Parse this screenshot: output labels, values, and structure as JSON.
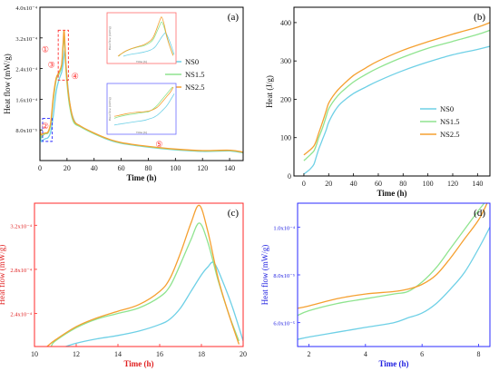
{
  "colors": {
    "NS0": "#6ed0e6",
    "NS1.5": "#8fe48f",
    "NS2.5": "#f5a030",
    "red_accent": "#ff3b30",
    "blue_accent": "#3a3aff"
  },
  "chart_data": [
    {
      "id": "a",
      "panel_label": "(a)",
      "type": "line",
      "title": "",
      "xlabel": "Time (h)",
      "ylabel": "Heat flow (mW/g)",
      "xlim": [
        0,
        150
      ],
      "ylim": [
        0,
        0.0004
      ],
      "x_ticks": [
        0,
        20,
        40,
        60,
        80,
        100,
        120,
        140
      ],
      "y_ticks": [
        8e-05,
        0.00016,
        0.00024,
        0.00032,
        0.0004
      ],
      "y_tick_labels": [
        "8.0x10⁻⁵",
        "1.6x10⁻⁴",
        "2.4x10⁻⁴",
        "3.2x10⁻⁴",
        "4.0x10⁻⁴"
      ],
      "legend": [
        "NS0",
        "NS1.5",
        "NS2.5"
      ],
      "legend_position": "right",
      "annotations": [
        "①",
        "②",
        "③",
        "④",
        "⑤"
      ],
      "series": [
        {
          "name": "NS0",
          "x": [
            0,
            1,
            2,
            4,
            6,
            8,
            10,
            12,
            14,
            16,
            17,
            18,
            18.6,
            19.5,
            21,
            23,
            26,
            30,
            40,
            50,
            60,
            80,
            100,
            120,
            140,
            150
          ],
          "values": [
            7e-05,
            5e-05,
            5.3e-05,
            5.7e-05,
            6e-05,
            7.5e-05,
            0.00012,
            0.00018,
            0.00021,
            0.00023,
            0.00025,
            0.00028,
            0.000286,
            0.00024,
            0.00018,
            0.00013,
            0.0001,
            8.8e-05,
            7e-05,
            5.5e-05,
            4.5e-05,
            3.5e-05,
            2.8e-05,
            2.4e-05,
            2.5e-05,
            2e-05
          ]
        },
        {
          "name": "NS1.5",
          "x": [
            0,
            1,
            2,
            4,
            6,
            8,
            10,
            12,
            14,
            16,
            17,
            17.9,
            19,
            20,
            22,
            25,
            30,
            40,
            50,
            60,
            80,
            100,
            120,
            140,
            150
          ],
          "values": [
            8e-05,
            6e-05,
            6.5e-05,
            7e-05,
            7.2e-05,
            9.5e-05,
            0.00016,
            0.00021,
            0.000225,
            0.000245,
            0.00029,
            0.000322,
            0.00025,
            0.0002,
            0.00014,
            0.0001,
            8.8e-05,
            7e-05,
            5.6e-05,
            4.6e-05,
            3.6e-05,
            2.9e-05,
            2.5e-05,
            2.6e-05,
            2.1e-05
          ]
        },
        {
          "name": "NS2.5",
          "x": [
            0,
            1,
            2,
            4,
            6,
            8,
            10,
            12,
            14,
            16,
            17,
            17.9,
            19,
            20,
            22,
            25,
            30,
            40,
            50,
            60,
            80,
            100,
            120,
            140,
            150
          ],
          "values": [
            8e-05,
            6.7e-05,
            7e-05,
            7.2e-05,
            7.5e-05,
            0.0001,
            0.00017,
            0.000215,
            0.00023,
            0.00025,
            0.0003,
            0.000338,
            0.00026,
            0.00021,
            0.00015,
            0.000105,
            9e-05,
            7.2e-05,
            5.7e-05,
            4.7e-05,
            3.7e-05,
            3e-05,
            2.6e-05,
            2.7e-05,
            2.2e-05
          ]
        }
      ],
      "insets": [
        {
          "border_color": "#ff6b6b",
          "xlabel": "Time (h)",
          "ylabel": "Heat flow (mW/g)"
        },
        {
          "border_color": "#6b6bff",
          "xlabel": "Time (h)",
          "ylabel": "Heat flow (mW/g)"
        }
      ]
    },
    {
      "id": "b",
      "panel_label": "(b)",
      "type": "line",
      "title": "",
      "xlabel": "Time (h)",
      "ylabel": "Heat (J/g)",
      "xlim": [
        -8,
        150
      ],
      "ylim": [
        0,
        440
      ],
      "x_ticks": [
        0,
        20,
        40,
        60,
        80,
        100,
        120,
        140
      ],
      "y_ticks": [
        0,
        100,
        200,
        300,
        400
      ],
      "legend": [
        "NS0",
        "NS1.5",
        "NS2.5"
      ],
      "legend_position": "center-right",
      "series": [
        {
          "name": "NS0",
          "x": [
            0,
            2,
            5,
            8,
            10,
            12,
            15,
            18,
            20,
            25,
            30,
            40,
            50,
            60,
            80,
            100,
            120,
            140,
            150
          ],
          "values": [
            5,
            10,
            18,
            30,
            50,
            70,
            95,
            120,
            140,
            170,
            190,
            215,
            232,
            248,
            275,
            297,
            316,
            330,
            338
          ]
        },
        {
          "name": "NS1.5",
          "x": [
            0,
            2,
            5,
            8,
            10,
            12,
            15,
            18,
            20,
            25,
            30,
            40,
            50,
            60,
            80,
            100,
            120,
            140,
            150
          ],
          "values": [
            40,
            46,
            55,
            65,
            80,
            100,
            125,
            155,
            175,
            200,
            218,
            245,
            265,
            282,
            310,
            333,
            351,
            369,
            380
          ]
        },
        {
          "name": "NS2.5",
          "x": [
            0,
            2,
            5,
            8,
            10,
            12,
            15,
            18,
            20,
            25,
            30,
            40,
            50,
            60,
            80,
            100,
            120,
            140,
            150
          ],
          "values": [
            55,
            60,
            68,
            78,
            92,
            112,
            140,
            170,
            190,
            215,
            233,
            262,
            282,
            300,
            328,
            350,
            370,
            388,
            400
          ]
        }
      ]
    },
    {
      "id": "c",
      "panel_label": "(c)",
      "type": "line",
      "title": "",
      "xlabel": "Time (h)",
      "ylabel": "Heat flow (mW/g)",
      "xlim": [
        10,
        20
      ],
      "ylim": [
        0.00021,
        0.00034
      ],
      "x_ticks": [
        10,
        12,
        14,
        16,
        18,
        20
      ],
      "y_ticks": [
        0.00024,
        0.00028,
        0.00032
      ],
      "y_tick_labels": [
        "2.4x10⁻⁴",
        "2.8x10⁻⁴",
        "3.2x10⁻⁴"
      ],
      "series": [
        {
          "name": "NS0",
          "x": [
            11.5,
            12,
            13,
            14,
            15,
            16,
            16.5,
            17,
            17.5,
            18,
            18.3,
            18.6,
            19,
            19.5,
            20
          ],
          "values": [
            0.00021,
            0.000213,
            0.000217,
            0.00022,
            0.000224,
            0.00023,
            0.000235,
            0.000245,
            0.00026,
            0.000275,
            0.000282,
            0.000286,
            0.00027,
            0.000245,
            0.000215
          ]
        },
        {
          "name": "NS1.5",
          "x": [
            10.8,
            11,
            12,
            13,
            14,
            15,
            16,
            16.5,
            17,
            17.5,
            17.9,
            18.3,
            18.8,
            19.3,
            19.8
          ],
          "values": [
            0.00021,
            0.000215,
            0.000227,
            0.000235,
            0.00024,
            0.000245,
            0.000255,
            0.000265,
            0.000285,
            0.000307,
            0.000322,
            0.000305,
            0.00027,
            0.00024,
            0.000215
          ]
        },
        {
          "name": "NS2.5",
          "x": [
            10.6,
            11,
            12,
            13,
            14,
            15,
            16,
            16.5,
            17,
            17.5,
            17.9,
            18.3,
            18.8,
            19.3,
            19.8
          ],
          "values": [
            0.00021,
            0.000216,
            0.000228,
            0.000236,
            0.000242,
            0.000248,
            0.00026,
            0.000272,
            0.000295,
            0.000322,
            0.000338,
            0.000315,
            0.000272,
            0.00024,
            0.000212
          ]
        }
      ]
    },
    {
      "id": "d",
      "panel_label": "(d)",
      "type": "line",
      "title": "",
      "xlabel": "Time (h)",
      "ylabel": "Heat flow (mW/g)",
      "xlim": [
        1.6,
        8.4
      ],
      "ylim": [
        5e-05,
        0.00011
      ],
      "x_ticks": [
        2,
        4,
        6,
        8
      ],
      "y_ticks": [
        6e-05,
        8e-05,
        0.0001
      ],
      "y_tick_labels": [
        "6.0x10⁻⁵",
        "8.0x10⁻⁵",
        "1.0x10⁻⁴"
      ],
      "series": [
        {
          "name": "NS0",
          "x": [
            1.6,
            2,
            3,
            4,
            5,
            5.5,
            6,
            6.5,
            7,
            7.5,
            8,
            8.4
          ],
          "values": [
            5.3e-05,
            5.4e-05,
            5.6e-05,
            5.8e-05,
            6e-05,
            6.2e-05,
            6.4e-05,
            6.8e-05,
            7.4e-05,
            8.1e-05,
            9.1e-05,
            0.0001
          ]
        },
        {
          "name": "NS1.5",
          "x": [
            1.6,
            2,
            3,
            4,
            5,
            5.5,
            6,
            6.5,
            7,
            7.5,
            8,
            8.2
          ],
          "values": [
            6.3e-05,
            6.5e-05,
            6.8e-05,
            7e-05,
            7.2e-05,
            7.3e-05,
            7.7e-05,
            8.3e-05,
            9.1e-05,
            9.9e-05,
            0.000107,
            0.00011
          ]
        },
        {
          "name": "NS2.5",
          "x": [
            1.6,
            2,
            3,
            4,
            5,
            5.5,
            6,
            6.5,
            7,
            7.5,
            8,
            8.3
          ],
          "values": [
            6.6e-05,
            6.7e-05,
            7e-05,
            7.2e-05,
            7.3e-05,
            7.4e-05,
            7.6e-05,
            8e-05,
            8.7e-05,
            9.5e-05,
            0.000103,
            0.00011
          ]
        }
      ]
    }
  ]
}
